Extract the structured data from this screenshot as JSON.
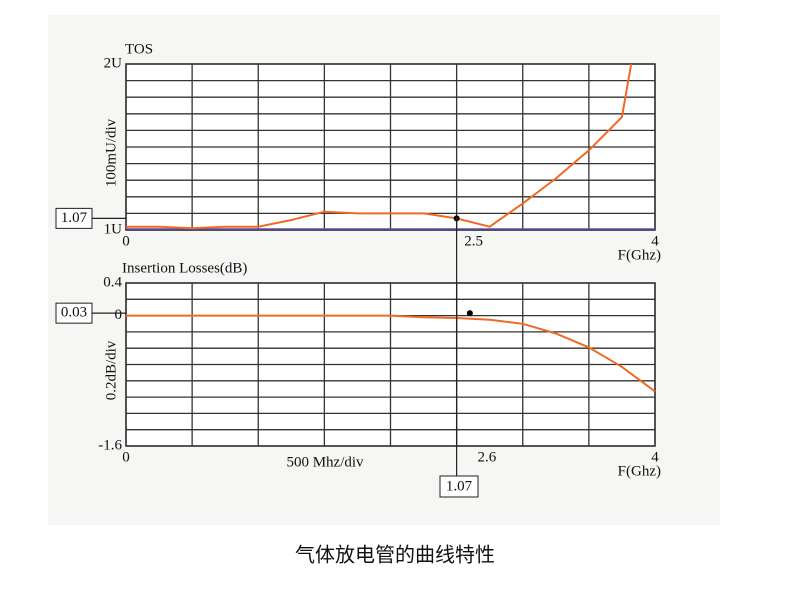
{
  "chart_data": [
    {
      "type": "line",
      "title": "TOS",
      "y_label": "100mU/div",
      "x_label": "F(Ghz)",
      "x": [
        0,
        0.25,
        0.5,
        0.75,
        1,
        1.25,
        1.5,
        1.75,
        2,
        2.25,
        2.5,
        2.75,
        3,
        3.25,
        3.5,
        3.75,
        3.82
      ],
      "values": [
        1.02,
        1.02,
        1.01,
        1.02,
        1.02,
        1.06,
        1.11,
        1.1,
        1.1,
        1.1,
        1.07,
        1.02,
        1.16,
        1.31,
        1.48,
        1.68,
        2.0
      ],
      "color": "#f06a26",
      "xlim": [
        0,
        4
      ],
      "ylim": [
        1,
        2
      ],
      "xticks": [
        0,
        4
      ],
      "yticks": [
        {
          "value": 2,
          "label": "2U"
        },
        {
          "value": 1,
          "label": "1U"
        }
      ],
      "xgrid": [
        0,
        0.5,
        1,
        1.5,
        2,
        2.5,
        3,
        3.5,
        4
      ],
      "ygrid": [
        1,
        1.1,
        1.2,
        1.3,
        1.4,
        1.5,
        1.6,
        1.7,
        1.8,
        1.9,
        2
      ],
      "marker": {
        "x": 2.5,
        "y": 1.07
      }
    },
    {
      "type": "line",
      "title": "Insertion Losses(dB)",
      "y_label": "0.2dB/div",
      "x_label": "F(Ghz)",
      "x_scale_label": "500 Mhz/div",
      "x": [
        0,
        0.5,
        1,
        1.5,
        2,
        2.25,
        2.5,
        2.75,
        3,
        3.25,
        3.5,
        3.75,
        4
      ],
      "values": [
        0,
        0,
        0,
        0,
        0,
        -0.02,
        -0.03,
        -0.05,
        -0.1,
        -0.22,
        -0.39,
        -0.63,
        -0.93
      ],
      "color": "#f06a26",
      "xlim": [
        0,
        4
      ],
      "ylim": [
        -1.6,
        0.4
      ],
      "xticks": [
        0,
        4
      ],
      "yticks": [
        0.4,
        0,
        -1.6
      ],
      "xgrid": [
        0,
        0.5,
        1,
        1.5,
        2,
        2.5,
        3,
        3.5,
        4
      ],
      "ygrid": [
        -1.6,
        -1.4,
        -1.2,
        -1,
        -0.8,
        -0.6,
        -0.4,
        -0.2,
        0,
        0.2,
        0.4
      ],
      "marker": {
        "x": 2.6,
        "y": 0.03
      },
      "readout": "1.07"
    }
  ],
  "caption": "气体放电管的曲线特性"
}
